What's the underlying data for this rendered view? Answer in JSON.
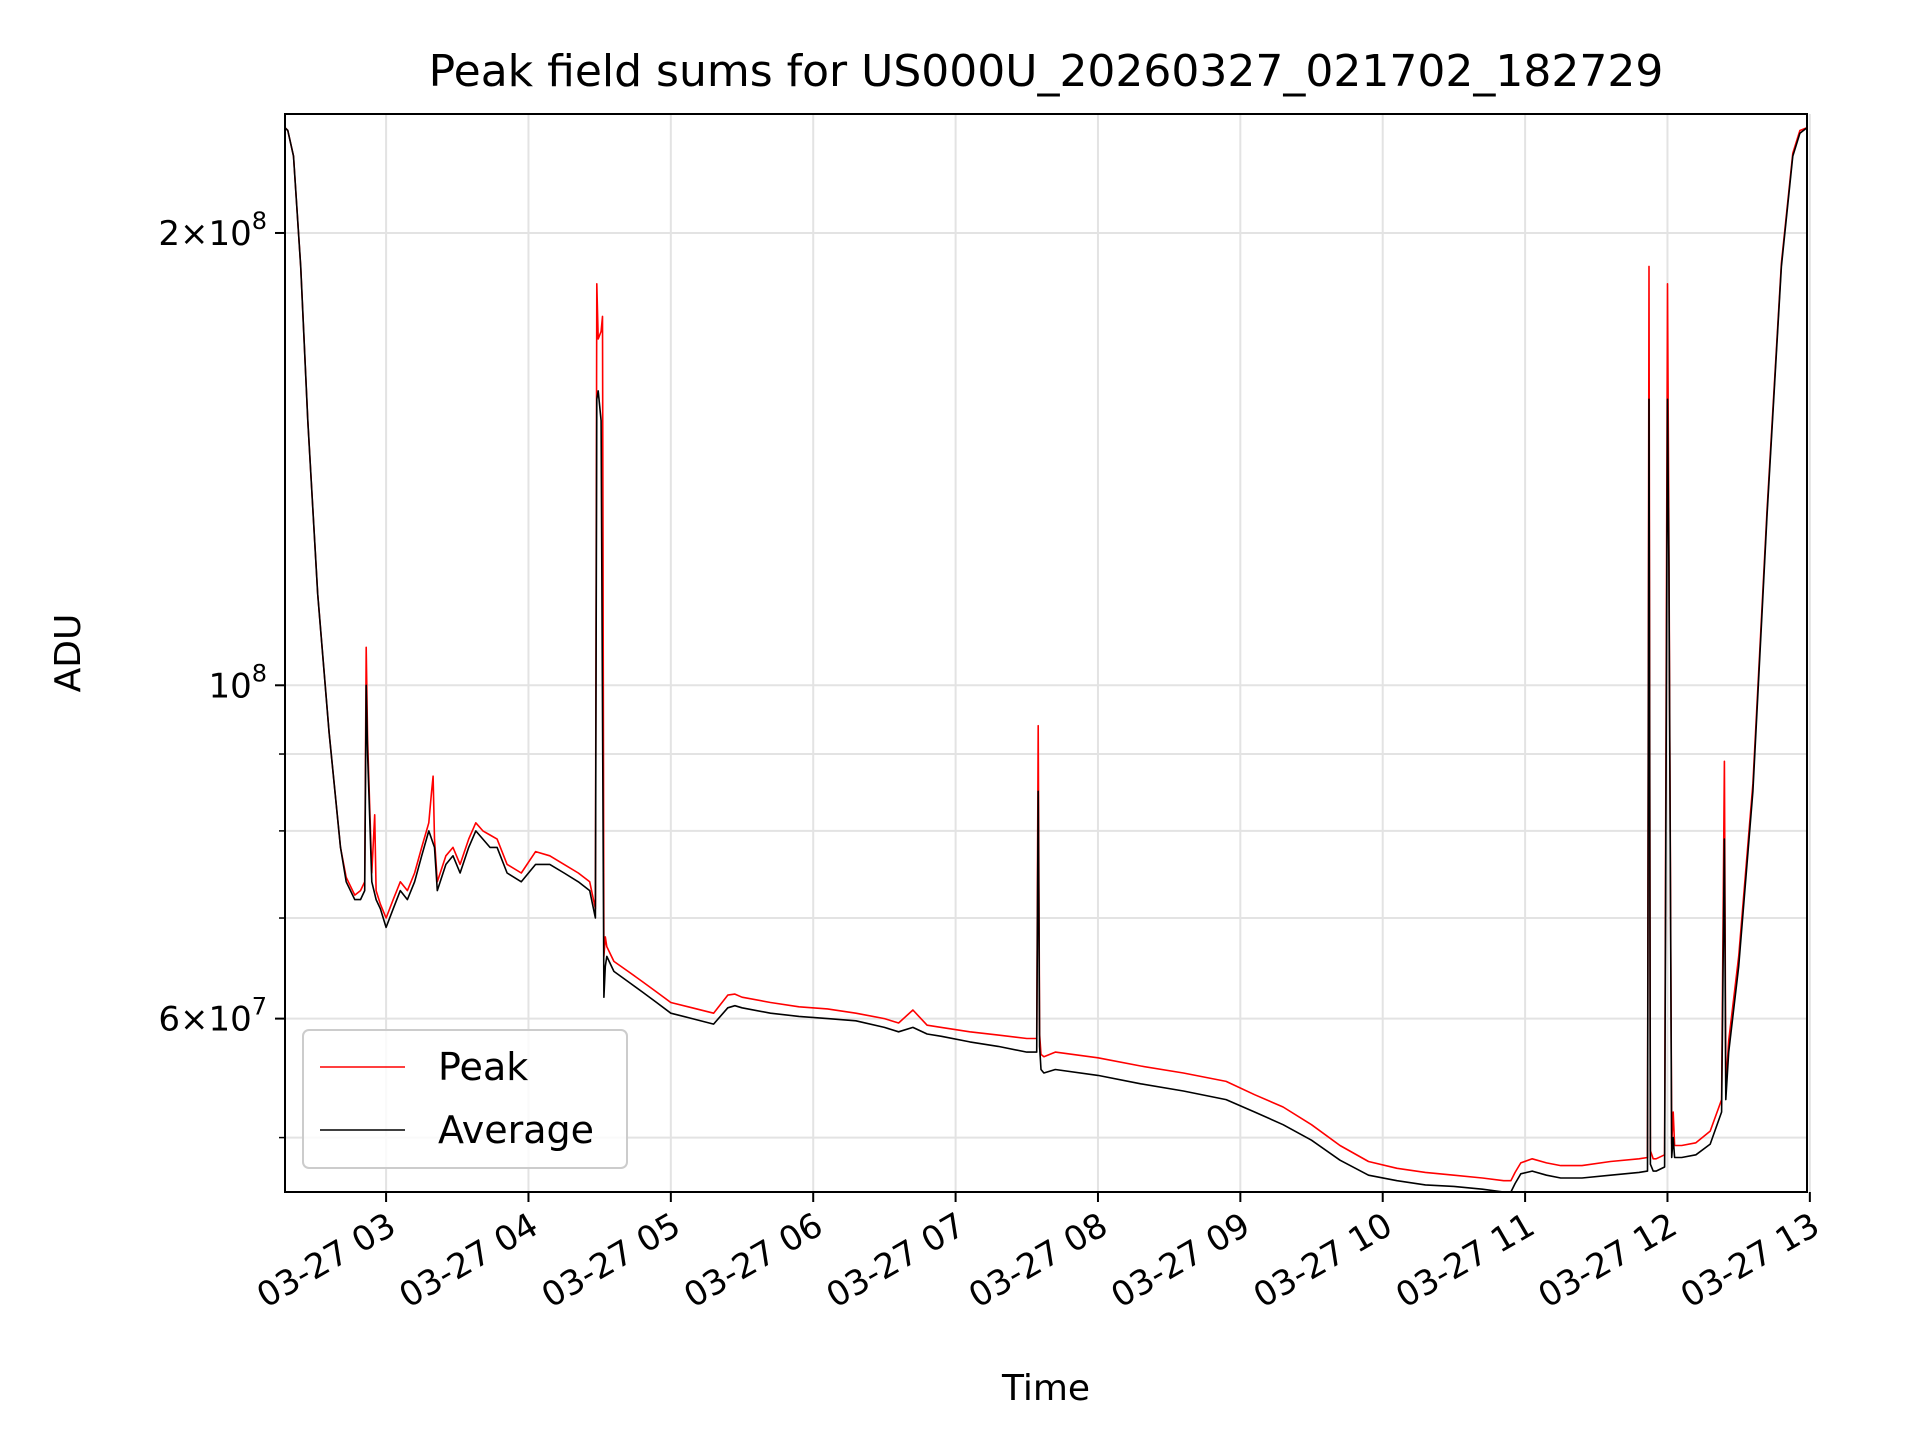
{
  "chart_data": {
    "type": "line",
    "title": "Peak field sums for US000U_20260327_021702_182729",
    "xlabel": "Time",
    "ylabel": "ADU",
    "yscale": "log",
    "grid": true,
    "legend_position": "lower-left",
    "xlim": [
      2.29,
      12.98
    ],
    "ylim": [
      46000000,
      240000000
    ],
    "x_unit": "hours since 2026-03-27 00:00",
    "x_ticks": [
      {
        "value": 3,
        "label": "03-27 03"
      },
      {
        "value": 4,
        "label": "03-27 04"
      },
      {
        "value": 5,
        "label": "03-27 05"
      },
      {
        "value": 6,
        "label": "03-27 06"
      },
      {
        "value": 7,
        "label": "03-27 07"
      },
      {
        "value": 8,
        "label": "03-27 08"
      },
      {
        "value": 9,
        "label": "03-27 09"
      },
      {
        "value": 10,
        "label": "03-27 10"
      },
      {
        "value": 11,
        "label": "03-27 11"
      },
      {
        "value": 12,
        "label": "03-27 12"
      },
      {
        "value": 13,
        "label": "03-27 13"
      }
    ],
    "y_ticks_major": [
      {
        "value": 60000000,
        "base": "6×10",
        "exp": "7"
      },
      {
        "value": 100000000,
        "base": "10",
        "exp": "8"
      },
      {
        "value": 200000000,
        "base": "2×10",
        "exp": "8"
      }
    ],
    "y_ticks_minor": [
      50000000,
      70000000,
      80000000,
      90000000
    ],
    "series": [
      {
        "name": "Average",
        "color": "#000000",
        "x": [
          2.29,
          2.31,
          2.35,
          2.4,
          2.45,
          2.52,
          2.6,
          2.68,
          2.72,
          2.78,
          2.82,
          2.85,
          2.86,
          2.87,
          2.9,
          2.93,
          2.96,
          3.0,
          3.05,
          3.1,
          3.15,
          3.2,
          3.25,
          3.3,
          3.34,
          3.36,
          3.38,
          3.42,
          3.47,
          3.52,
          3.58,
          3.63,
          3.68,
          3.73,
          3.78,
          3.85,
          3.95,
          4.05,
          4.15,
          4.25,
          4.35,
          4.43,
          4.47,
          4.48,
          4.49,
          4.51,
          4.53,
          4.54,
          4.55,
          4.6,
          4.7,
          4.8,
          4.9,
          5.0,
          5.15,
          5.3,
          5.4,
          5.45,
          5.5,
          5.7,
          5.9,
          6.1,
          6.3,
          6.5,
          6.6,
          6.7,
          6.8,
          6.9,
          7.1,
          7.3,
          7.5,
          7.57,
          7.58,
          7.59,
          7.6,
          7.62,
          7.7,
          8.0,
          8.3,
          8.6,
          8.9,
          9.1,
          9.3,
          9.5,
          9.7,
          9.9,
          10.1,
          10.3,
          10.5,
          10.7,
          10.85,
          10.9,
          10.93,
          10.97,
          11.05,
          11.15,
          11.25,
          11.4,
          11.6,
          11.8,
          11.86,
          11.87,
          11.88,
          11.9,
          11.92,
          11.98,
          12.0,
          12.01,
          12.03,
          12.04,
          12.05,
          12.1,
          12.2,
          12.3,
          12.38,
          12.4,
          12.41,
          12.43,
          12.5,
          12.6,
          12.7,
          12.8,
          12.88,
          12.93,
          12.98
        ],
        "y": [
          235000000,
          234000000,
          225000000,
          190000000,
          150000000,
          115000000,
          93000000,
          78000000,
          74000000,
          72000000,
          72000000,
          73000000,
          100000000,
          90000000,
          74000000,
          72000000,
          71000000,
          69000000,
          71000000,
          73000000,
          72000000,
          74000000,
          77000000,
          80000000,
          78000000,
          73000000,
          74000000,
          76000000,
          77000000,
          75000000,
          78000000,
          80000000,
          79000000,
          78000000,
          78000000,
          75000000,
          74000000,
          76000000,
          76000000,
          75000000,
          74000000,
          73000000,
          70000000,
          155000000,
          157000000,
          150000000,
          62000000,
          65000000,
          66000000,
          64500000,
          63500000,
          62500000,
          61500000,
          60500000,
          60000000,
          59500000,
          61000000,
          61200000,
          61000000,
          60500000,
          60200000,
          60000000,
          59800000,
          59200000,
          58800000,
          59200000,
          58600000,
          58400000,
          57900000,
          57500000,
          57000000,
          57000000,
          85000000,
          57500000,
          55500000,
          55200000,
          55500000,
          55000000,
          54300000,
          53700000,
          53000000,
          52000000,
          51000000,
          49800000,
          48300000,
          47200000,
          46800000,
          46500000,
          46400000,
          46200000,
          46000000,
          46000000,
          46600000,
          47300000,
          47500000,
          47200000,
          47000000,
          47000000,
          47200000,
          47400000,
          47500000,
          155000000,
          48000000,
          47500000,
          47500000,
          47800000,
          155000000,
          120000000,
          48500000,
          50000000,
          48500000,
          48500000,
          48700000,
          49500000,
          52000000,
          79000000,
          53000000,
          57000000,
          65000000,
          85000000,
          130000000,
          190000000,
          225000000,
          233000000,
          235000000
        ]
      },
      {
        "name": "Peak",
        "color": "#ff0000",
        "x": [
          2.29,
          2.31,
          2.35,
          2.4,
          2.45,
          2.52,
          2.6,
          2.68,
          2.72,
          2.78,
          2.82,
          2.85,
          2.86,
          2.87,
          2.9,
          2.92,
          2.93,
          2.96,
          3.0,
          3.05,
          3.1,
          3.15,
          3.2,
          3.25,
          3.3,
          3.32,
          3.33,
          3.34,
          3.36,
          3.38,
          3.42,
          3.47,
          3.52,
          3.58,
          3.63,
          3.68,
          3.73,
          3.78,
          3.85,
          3.95,
          4.05,
          4.15,
          4.25,
          4.35,
          4.43,
          4.47,
          4.48,
          4.49,
          4.51,
          4.52,
          4.53,
          4.54,
          4.55,
          4.6,
          4.7,
          4.8,
          4.9,
          5.0,
          5.15,
          5.3,
          5.4,
          5.45,
          5.5,
          5.7,
          5.9,
          6.1,
          6.3,
          6.5,
          6.6,
          6.7,
          6.8,
          6.9,
          7.1,
          7.3,
          7.5,
          7.57,
          7.58,
          7.59,
          7.6,
          7.62,
          7.7,
          8.0,
          8.3,
          8.6,
          8.9,
          9.1,
          9.3,
          9.5,
          9.7,
          9.9,
          10.1,
          10.3,
          10.5,
          10.7,
          10.85,
          10.9,
          10.93,
          10.97,
          11.05,
          11.15,
          11.25,
          11.4,
          11.6,
          11.8,
          11.86,
          11.87,
          11.88,
          11.9,
          11.92,
          11.98,
          12.0,
          12.01,
          12.03,
          12.04,
          12.05,
          12.1,
          12.2,
          12.3,
          12.38,
          12.4,
          12.41,
          12.43,
          12.5,
          12.6,
          12.7,
          12.8,
          12.88,
          12.93,
          12.98
        ],
        "y": [
          235000000,
          234000000,
          225000000,
          190000000,
          150000000,
          115000000,
          93000000,
          78000000,
          74500000,
          72500000,
          73000000,
          74000000,
          106000000,
          92000000,
          75000000,
          82000000,
          73000000,
          71500000,
          70000000,
          72000000,
          74000000,
          73000000,
          75000000,
          78000000,
          81000000,
          85000000,
          87000000,
          79000000,
          74000000,
          75000000,
          77000000,
          78000000,
          76000000,
          79000000,
          81000000,
          80000000,
          79500000,
          79000000,
          76000000,
          75000000,
          77500000,
          77000000,
          76000000,
          75000000,
          74000000,
          71000000,
          185000000,
          170000000,
          172000000,
          176000000,
          66000000,
          68000000,
          67000000,
          65500000,
          64500000,
          63500000,
          62500000,
          61500000,
          61000000,
          60500000,
          62200000,
          62300000,
          62000000,
          61500000,
          61100000,
          60900000,
          60500000,
          60000000,
          59600000,
          60800000,
          59400000,
          59200000,
          58800000,
          58500000,
          58200000,
          58200000,
          94000000,
          58600000,
          56800000,
          56600000,
          57000000,
          56500000,
          55800000,
          55200000,
          54500000,
          53400000,
          52400000,
          51000000,
          49400000,
          48200000,
          47700000,
          47400000,
          47200000,
          47000000,
          46800000,
          46800000,
          47400000,
          48100000,
          48400000,
          48100000,
          47900000,
          47900000,
          48200000,
          48400000,
          48500000,
          190000000,
          49000000,
          48400000,
          48400000,
          48700000,
          185000000,
          125000000,
          49500000,
          52000000,
          49400000,
          49400000,
          49600000,
          50500000,
          53000000,
          89000000,
          54000000,
          58000000,
          66000000,
          86000000,
          131000000,
          191000000,
          226000000,
          234000000,
          235000000
        ]
      }
    ],
    "legend": [
      {
        "label": "Peak",
        "color": "#ff0000"
      },
      {
        "label": "Average",
        "color": "#000000"
      }
    ]
  }
}
